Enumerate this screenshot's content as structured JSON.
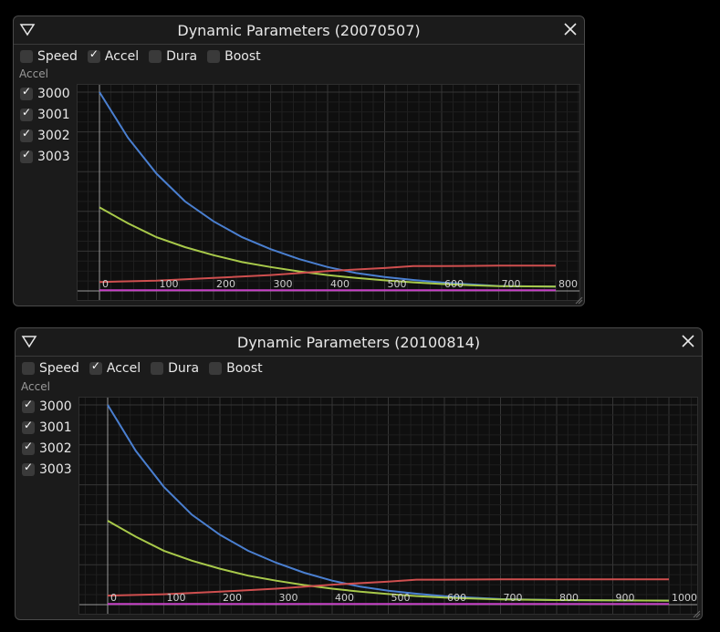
{
  "windows": [
    {
      "title": "Dynamic Parameters (20070507)",
      "toolbar": [
        {
          "label": "Speed",
          "checked": false
        },
        {
          "label": "Accel",
          "checked": true
        },
        {
          "label": "Dura",
          "checked": false
        },
        {
          "label": "Boost",
          "checked": false
        }
      ],
      "section_label": "Accel",
      "series_toggles": [
        {
          "label": "3000",
          "checked": true
        },
        {
          "label": "3001",
          "checked": true
        },
        {
          "label": "3002",
          "checked": true
        },
        {
          "label": "3003",
          "checked": true
        }
      ],
      "chart_data": {
        "type": "line",
        "x_ticks": [
          "0",
          "100",
          "200",
          "300",
          "400",
          "500",
          "600",
          "700",
          "800"
        ],
        "xlim": [
          0,
          800
        ],
        "ylim": [
          0,
          100
        ],
        "grid": true,
        "series": [
          {
            "color": "#4a7fd0",
            "x": [
              0,
              50,
              100,
              150,
              200,
              250,
              300,
              350,
              400,
              450,
              500,
              550,
              600,
              650,
              700,
              800
            ],
            "y": [
              100,
              77,
              59,
              45,
              35,
              27,
              21,
              16,
              12,
              9,
              7,
              5.5,
              4.2,
              3.3,
              2.5,
              2.2
            ]
          },
          {
            "color": "#a8c94a",
            "x": [
              0,
              50,
              100,
              150,
              200,
              250,
              300,
              350,
              400,
              450,
              500,
              550,
              600,
              650,
              700,
              800
            ],
            "y": [
              42,
              34,
              27,
              22,
              18,
              14.5,
              12,
              9.8,
              8,
              6.5,
              5.3,
              4.3,
              3.5,
              2.9,
              2.4,
              2.2
            ]
          },
          {
            "color": "#cf4f4f",
            "x": [
              0,
              100,
              200,
              300,
              400,
              500,
              550,
              600,
              700,
              800
            ],
            "y": [
              4.5,
              5.2,
              6.5,
              8,
              10,
              11.5,
              12.5,
              12.5,
              12.7,
              12.7
            ]
          },
          {
            "color": "#c640c6",
            "x": [
              0,
              800
            ],
            "y": [
              0.3,
              0.3
            ]
          }
        ]
      }
    },
    {
      "title": "Dynamic Parameters (20100814)",
      "toolbar": [
        {
          "label": "Speed",
          "checked": false
        },
        {
          "label": "Accel",
          "checked": true
        },
        {
          "label": "Dura",
          "checked": false
        },
        {
          "label": "Boost",
          "checked": false
        }
      ],
      "section_label": "Accel",
      "series_toggles": [
        {
          "label": "3000",
          "checked": true
        },
        {
          "label": "3001",
          "checked": true
        },
        {
          "label": "3002",
          "checked": true
        },
        {
          "label": "3003",
          "checked": true
        }
      ],
      "chart_data": {
        "type": "line",
        "x_ticks": [
          "0",
          "100",
          "200",
          "300",
          "400",
          "500",
          "600",
          "700",
          "800",
          "900",
          "1000"
        ],
        "xlim": [
          0,
          1000
        ],
        "ylim": [
          0,
          100
        ],
        "grid": true,
        "series": [
          {
            "color": "#4a7fd0",
            "x": [
              0,
              50,
              100,
              150,
              200,
              250,
              300,
              350,
              400,
              450,
              500,
              550,
              600,
              700,
              800,
              1000
            ],
            "y": [
              100,
              77,
              59,
              45,
              35,
              27,
              21,
              16,
              12,
              9,
              7,
              5.5,
              4.2,
              2.8,
              2.3,
              2.0
            ]
          },
          {
            "color": "#a8c94a",
            "x": [
              0,
              50,
              100,
              150,
              200,
              250,
              300,
              350,
              400,
              450,
              500,
              550,
              600,
              700,
              800,
              1000
            ],
            "y": [
              42,
              34,
              27,
              22,
              18,
              14.5,
              12,
              9.8,
              8,
              6.5,
              5.3,
              4.3,
              3.5,
              2.6,
              2.3,
              2.0
            ]
          },
          {
            "color": "#cf4f4f",
            "x": [
              0,
              100,
              200,
              300,
              400,
              500,
              550,
              600,
              700,
              800,
              1000
            ],
            "y": [
              4.5,
              5.2,
              6.5,
              8,
              10,
              11.5,
              12.5,
              12.5,
              12.7,
              12.7,
              12.7
            ]
          },
          {
            "color": "#c640c6",
            "x": [
              0,
              1000
            ],
            "y": [
              0.3,
              0.3
            ]
          }
        ]
      }
    }
  ]
}
